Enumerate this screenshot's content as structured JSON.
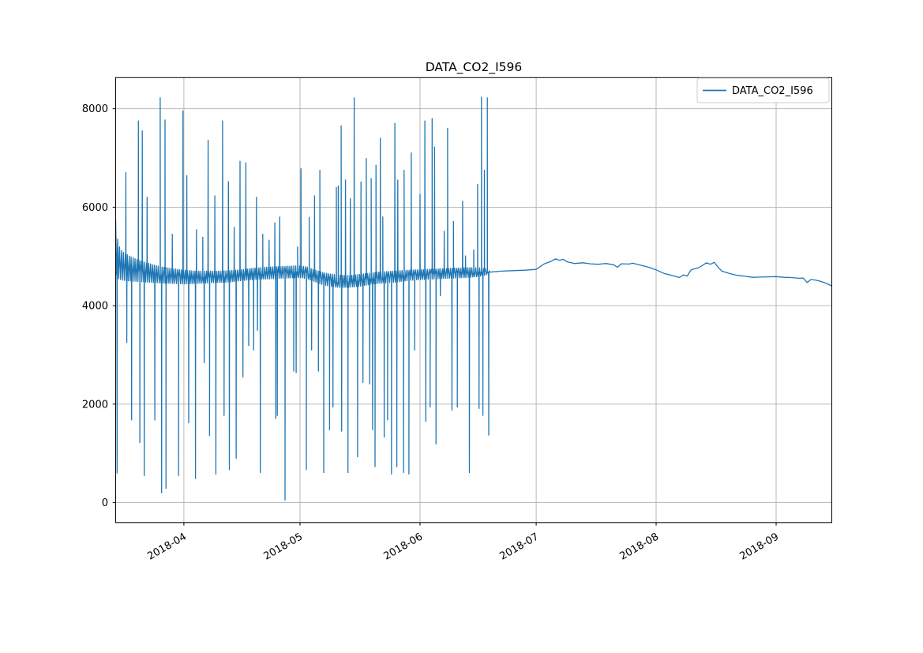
{
  "figure": {
    "title": "DATA_CO2_I596"
  },
  "legend": {
    "entries": [
      {
        "label": "DATA_CO2_I596",
        "color": "#1f77b4"
      }
    ]
  },
  "chart_data": {
    "type": "line",
    "title": "DATA_CO2_I596",
    "series_name": "DATA_CO2_I596",
    "line_color": "#1f77b4",
    "grid_color": "#b0b0b0",
    "spine_color": "#000000",
    "grid": true,
    "legend_position": "upper right",
    "x_start": "2018-03-14T09:00",
    "x_end": "2018-09-15T09:00",
    "noise_end": "2018-06-19T00:00",
    "ylim": [
      -405,
      8630
    ],
    "yticks": [
      0,
      2000,
      4000,
      6000,
      8000
    ],
    "xticks": [
      "2018-04",
      "2018-05",
      "2018-06",
      "2018-07",
      "2018-08",
      "2018-09"
    ],
    "noise_band": [
      [
        "2018-03-14",
        4750,
        6050
      ],
      [
        "2018-03-15",
        4550,
        5250
      ],
      [
        "2018-03-16",
        4520,
        5100
      ],
      [
        "2018-03-18",
        4500,
        5000
      ],
      [
        "2018-03-20",
        4490,
        4930
      ],
      [
        "2018-03-22",
        4480,
        4880
      ],
      [
        "2018-03-24",
        4470,
        4830
      ],
      [
        "2018-03-26",
        4460,
        4790
      ],
      [
        "2018-03-29",
        4450,
        4750
      ],
      [
        "2018-04-01",
        4440,
        4720
      ],
      [
        "2018-04-04",
        4450,
        4700
      ],
      [
        "2018-04-07",
        4460,
        4700
      ],
      [
        "2018-04-10",
        4470,
        4700
      ],
      [
        "2018-04-13",
        4480,
        4710
      ],
      [
        "2018-04-16",
        4510,
        4730
      ],
      [
        "2018-04-19",
        4530,
        4760
      ],
      [
        "2018-04-22",
        4540,
        4780
      ],
      [
        "2018-04-25",
        4550,
        4790
      ],
      [
        "2018-04-28",
        4560,
        4800
      ],
      [
        "2018-05-01",
        4570,
        4810
      ],
      [
        "2018-05-03",
        4540,
        4780
      ],
      [
        "2018-05-05",
        4480,
        4720
      ],
      [
        "2018-05-07",
        4420,
        4670
      ],
      [
        "2018-05-09",
        4390,
        4640
      ],
      [
        "2018-05-11",
        4370,
        4620
      ],
      [
        "2018-05-13",
        4370,
        4610
      ],
      [
        "2018-05-15",
        4380,
        4620
      ],
      [
        "2018-05-17",
        4400,
        4640
      ],
      [
        "2018-05-19",
        4430,
        4660
      ],
      [
        "2018-05-21",
        4450,
        4680
      ],
      [
        "2018-05-23",
        4460,
        4690
      ],
      [
        "2018-05-25",
        4470,
        4700
      ],
      [
        "2018-05-27",
        4490,
        4710
      ],
      [
        "2018-05-29",
        4510,
        4720
      ],
      [
        "2018-06-01",
        4530,
        4730
      ],
      [
        "2018-06-04",
        4540,
        4740
      ],
      [
        "2018-06-07",
        4550,
        4750
      ],
      [
        "2018-06-10",
        4560,
        4760
      ],
      [
        "2018-06-13",
        4570,
        4770
      ],
      [
        "2018-06-16",
        4590,
        4770
      ],
      [
        "2018-06-18",
        4620,
        4750
      ],
      [
        "2018-06-19",
        4660,
        4700
      ]
    ],
    "spikes": [
      [
        "2018-03-14T18:00",
        600
      ],
      [
        "2018-03-17T00:00",
        6700
      ],
      [
        "2018-03-17T06:00",
        3250
      ],
      [
        "2018-03-18T12:00",
        1680
      ],
      [
        "2018-03-20T06:00",
        7750
      ],
      [
        "2018-03-20T15:00",
        1220
      ],
      [
        "2018-03-21T06:00",
        7550
      ],
      [
        "2018-03-21T18:00",
        550
      ],
      [
        "2018-03-22T12:00",
        6200
      ],
      [
        "2018-03-24T12:00",
        1680
      ],
      [
        "2018-03-25T21:00",
        8220
      ],
      [
        "2018-03-26T06:00",
        200
      ],
      [
        "2018-03-27T03:00",
        7770
      ],
      [
        "2018-03-27T09:00",
        290
      ],
      [
        "2018-03-29T00:00",
        5450
      ],
      [
        "2018-03-30T15:00",
        550
      ],
      [
        "2018-03-31T18:00",
        7950
      ],
      [
        "2018-04-01T18:00",
        6640
      ],
      [
        "2018-04-02T06:00",
        1620
      ],
      [
        "2018-04-04T00:00",
        490
      ],
      [
        "2018-04-04T06:00",
        5540
      ],
      [
        "2018-04-05T21:00",
        5390
      ],
      [
        "2018-04-06T06:00",
        2840
      ],
      [
        "2018-04-07T06:00",
        7360
      ],
      [
        "2018-04-07T15:00",
        1360
      ],
      [
        "2018-04-09T00:00",
        6230
      ],
      [
        "2018-04-09T06:00",
        580
      ],
      [
        "2018-04-11T00:00",
        7750
      ],
      [
        "2018-04-11T09:00",
        1770
      ],
      [
        "2018-04-12T12:00",
        6520
      ],
      [
        "2018-04-12T18:00",
        670
      ],
      [
        "2018-04-14T00:00",
        5590
      ],
      [
        "2018-04-14T12:00",
        900
      ],
      [
        "2018-04-15T12:00",
        6930
      ],
      [
        "2018-04-16T06:00",
        2550
      ],
      [
        "2018-04-17T00:00",
        6900
      ],
      [
        "2018-04-17T18:00",
        3190
      ],
      [
        "2018-04-19T00:00",
        3100
      ],
      [
        "2018-04-19T18:00",
        6200
      ],
      [
        "2018-04-20T00:00",
        3500
      ],
      [
        "2018-04-20T18:00",
        610
      ],
      [
        "2018-04-21T09:00",
        5450
      ],
      [
        "2018-04-23T00:00",
        5330
      ],
      [
        "2018-04-24T12:00",
        5680
      ],
      [
        "2018-04-24T18:00",
        1710
      ],
      [
        "2018-04-25T03:00",
        1770
      ],
      [
        "2018-04-25T18:00",
        5800
      ],
      [
        "2018-04-27T03:00",
        50
      ],
      [
        "2018-04-29T09:00",
        2670
      ],
      [
        "2018-04-30T00:00",
        2640
      ],
      [
        "2018-04-30T09:00",
        5190
      ],
      [
        "2018-05-01T06:00",
        6780
      ],
      [
        "2018-05-02T15:00",
        670
      ],
      [
        "2018-05-03T09:00",
        5790
      ],
      [
        "2018-05-04T00:00",
        3100
      ],
      [
        "2018-05-04T18:00",
        6230
      ],
      [
        "2018-05-05T18:00",
        2670
      ],
      [
        "2018-05-06T03:00",
        6750
      ],
      [
        "2018-05-07T03:00",
        610
      ],
      [
        "2018-05-08T15:00",
        1480
      ],
      [
        "2018-05-09T12:00",
        1940
      ],
      [
        "2018-05-10T09:00",
        6400
      ],
      [
        "2018-05-10T21:00",
        6430
      ],
      [
        "2018-05-11T15:00",
        7650
      ],
      [
        "2018-05-11T18:00",
        1450
      ],
      [
        "2018-05-12T18:00",
        6550
      ],
      [
        "2018-05-13T09:00",
        610
      ],
      [
        "2018-05-14T00:00",
        6170
      ],
      [
        "2018-05-15T00:00",
        8220
      ],
      [
        "2018-05-15T21:00",
        930
      ],
      [
        "2018-05-16T18:00",
        6510
      ],
      [
        "2018-05-17T06:00",
        2440
      ],
      [
        "2018-05-18T03:00",
        6990
      ],
      [
        "2018-05-19T00:00",
        2410
      ],
      [
        "2018-05-19T09:00",
        6580
      ],
      [
        "2018-05-19T18:00",
        1480
      ],
      [
        "2018-05-20T09:00",
        730
      ],
      [
        "2018-05-20T15:00",
        6850
      ],
      [
        "2018-05-21T18:00",
        7400
      ],
      [
        "2018-05-22T09:00",
        5800
      ],
      [
        "2018-05-22T18:00",
        1330
      ],
      [
        "2018-05-23T15:00",
        1680
      ],
      [
        "2018-05-24T15:00",
        580
      ],
      [
        "2018-05-25T12:00",
        7700
      ],
      [
        "2018-05-26T00:00",
        730
      ],
      [
        "2018-05-26T06:00",
        6550
      ],
      [
        "2018-05-27T18:00",
        610
      ],
      [
        "2018-05-27T21:00",
        6750
      ],
      [
        "2018-05-29T03:00",
        580
      ],
      [
        "2018-05-29T18:00",
        7100
      ],
      [
        "2018-05-30T15:00",
        3100
      ],
      [
        "2018-06-01T00:00",
        6260
      ],
      [
        "2018-06-02T06:00",
        7750
      ],
      [
        "2018-06-02T12:00",
        1650
      ],
      [
        "2018-06-03T15:00",
        1940
      ],
      [
        "2018-06-04T03:00",
        7800
      ],
      [
        "2018-06-04T18:00",
        7220
      ],
      [
        "2018-06-05T03:00",
        1190
      ],
      [
        "2018-06-06T06:00",
        4200
      ],
      [
        "2018-06-07T06:00",
        5510
      ],
      [
        "2018-06-08T03:00",
        7600
      ],
      [
        "2018-06-09T06:00",
        1880
      ],
      [
        "2018-06-09T15:00",
        5710
      ],
      [
        "2018-06-10T15:00",
        1940
      ],
      [
        "2018-06-12T00:00",
        6120
      ],
      [
        "2018-06-12T18:00",
        5010
      ],
      [
        "2018-06-13T18:00",
        610
      ],
      [
        "2018-06-14T21:00",
        5130
      ],
      [
        "2018-06-15T21:00",
        6460
      ],
      [
        "2018-06-16T06:00",
        1910
      ],
      [
        "2018-06-16T21:00",
        8230
      ],
      [
        "2018-06-17T06:00",
        1770
      ],
      [
        "2018-06-17T15:00",
        6750
      ],
      [
        "2018-06-18T09:00",
        8220
      ],
      [
        "2018-06-18T18:00",
        1370
      ]
    ],
    "smooth": [
      [
        "2018-06-19",
        4680
      ],
      [
        "2018-06-22",
        4700
      ],
      [
        "2018-06-25",
        4710
      ],
      [
        "2018-06-28",
        4720
      ],
      [
        "2018-07-01",
        4735
      ],
      [
        "2018-07-03",
        4845
      ],
      [
        "2018-07-05",
        4905
      ],
      [
        "2018-07-06",
        4950
      ],
      [
        "2018-07-07",
        4920
      ],
      [
        "2018-07-08",
        4940
      ],
      [
        "2018-07-09",
        4890
      ],
      [
        "2018-07-11",
        4855
      ],
      [
        "2018-07-13",
        4870
      ],
      [
        "2018-07-15",
        4850
      ],
      [
        "2018-07-17",
        4840
      ],
      [
        "2018-07-19",
        4855
      ],
      [
        "2018-07-21",
        4830
      ],
      [
        "2018-07-22",
        4780
      ],
      [
        "2018-07-23",
        4850
      ],
      [
        "2018-07-25",
        4845
      ],
      [
        "2018-07-26",
        4860
      ],
      [
        "2018-07-28",
        4820
      ],
      [
        "2018-07-30",
        4780
      ],
      [
        "2018-08-01",
        4725
      ],
      [
        "2018-08-03",
        4655
      ],
      [
        "2018-08-05",
        4615
      ],
      [
        "2018-08-07",
        4570
      ],
      [
        "2018-08-08",
        4625
      ],
      [
        "2018-08-09",
        4600
      ],
      [
        "2018-08-10",
        4725
      ],
      [
        "2018-08-12",
        4770
      ],
      [
        "2018-08-14",
        4870
      ],
      [
        "2018-08-15",
        4840
      ],
      [
        "2018-08-16",
        4880
      ],
      [
        "2018-08-17",
        4780
      ],
      [
        "2018-08-18",
        4700
      ],
      [
        "2018-08-20",
        4650
      ],
      [
        "2018-08-22",
        4615
      ],
      [
        "2018-08-24",
        4595
      ],
      [
        "2018-08-26",
        4575
      ],
      [
        "2018-08-28",
        4580
      ],
      [
        "2018-08-30",
        4585
      ],
      [
        "2018-09-01",
        4590
      ],
      [
        "2018-09-03",
        4575
      ],
      [
        "2018-09-05",
        4570
      ],
      [
        "2018-09-07",
        4555
      ],
      [
        "2018-09-08",
        4560
      ],
      [
        "2018-09-09",
        4470
      ],
      [
        "2018-09-10",
        4530
      ],
      [
        "2018-09-11",
        4520
      ],
      [
        "2018-09-12",
        4505
      ],
      [
        "2018-09-13",
        4480
      ],
      [
        "2018-09-14",
        4450
      ],
      [
        "2018-09-15T09:00",
        4400
      ]
    ]
  }
}
